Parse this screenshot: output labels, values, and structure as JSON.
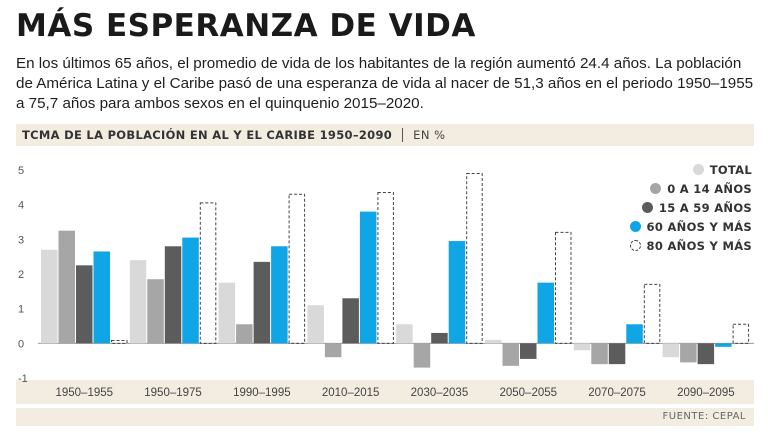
{
  "header": {
    "title": "MÁS ESPERANZA DE VIDA",
    "intro": "En los últimos 65 años, el promedio de vida de los habitantes de la región aumentó 24.4 años. La población de América Latina y el Caribe pasó de una esperanza de vida al nacer de 51,3 años en el periodo 1950–1955 a 75,7 años para ambos sexos en el quinquenio 2015–2020."
  },
  "chart_header": {
    "title": "TCMA DE LA POBLACIÓN EN AL Y EL CARIBE 1950–2090",
    "unit": "EN %"
  },
  "source": "FUENTE: CEPAL",
  "colors": {
    "total": "#d9d9d9",
    "age_0_14": "#a6a6a6",
    "age_15_59": "#5c5c5c",
    "age_60_plus": "#10a5e4",
    "age_80_plus_stroke": "#444444",
    "band": "#f3ece1"
  },
  "chart_data": {
    "type": "bar",
    "title": "TCMA DE LA POBLACIÓN EN AL Y EL CARIBE 1950–2090",
    "ylabel": "EN %",
    "xlabel": "",
    "ylim": [
      -1,
      5
    ],
    "yticks": [
      "5",
      "4",
      "3",
      "2",
      "1",
      "0",
      "-1"
    ],
    "categories": [
      "1950–1955",
      "1950–1975",
      "1990–1995",
      "2010–2015",
      "2030–2035",
      "2050–2055",
      "2070–2075",
      "2090–2095"
    ],
    "series": [
      {
        "name": "TOTAL",
        "style": "total",
        "values": [
          2.7,
          2.4,
          1.75,
          1.1,
          0.55,
          0.1,
          -0.2,
          -0.4
        ]
      },
      {
        "name": "0 A 14 AÑOS",
        "style": "age_0_14",
        "values": [
          3.25,
          1.85,
          0.55,
          -0.4,
          -0.7,
          -0.65,
          -0.6,
          -0.55
        ]
      },
      {
        "name": "15 A 59 AÑOS",
        "style": "age_15_59",
        "values": [
          2.25,
          2.8,
          2.35,
          1.3,
          0.3,
          -0.45,
          -0.6,
          -0.6
        ]
      },
      {
        "name": "60 AÑOS Y MÁS",
        "style": "age_60_plus",
        "values": [
          2.65,
          3.05,
          2.8,
          3.8,
          2.95,
          1.75,
          0.55,
          -0.1
        ]
      },
      {
        "name": "80 AÑOS Y MÁS",
        "style": "age_80_plus",
        "values": [
          0.08,
          4.05,
          4.3,
          4.35,
          4.9,
          3.2,
          1.7,
          0.55
        ]
      }
    ]
  }
}
